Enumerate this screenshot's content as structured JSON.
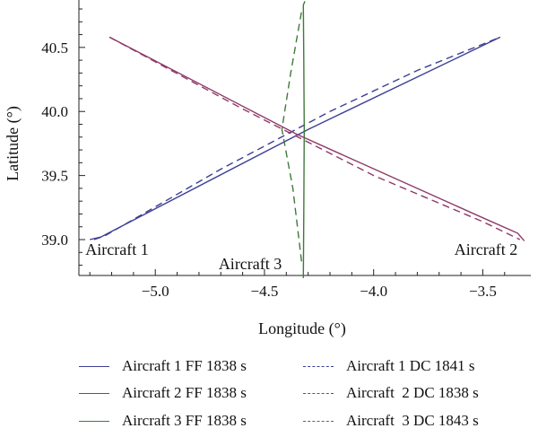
{
  "chart_data": {
    "type": "line",
    "xlabel": "Longitude (°)",
    "ylabel": "Latitude (°)",
    "xlim": [
      -5.35,
      -3.28
    ],
    "ylim": [
      38.72,
      40.87
    ],
    "xticks": [
      -5.0,
      -4.5,
      -4.0,
      -3.5
    ],
    "xtick_labels": [
      "−5.0",
      "−4.5",
      "−4.0",
      "−3.5"
    ],
    "yticks": [
      39.0,
      39.5,
      40.0,
      40.5
    ],
    "ytick_labels": [
      "39.0",
      "39.5",
      "40.0",
      "40.5"
    ],
    "legend_position": "bottom",
    "series": [
      {
        "name": "Aircraft 1 FF 1838 s",
        "color": "#3d3f94",
        "dash": "solid",
        "x": [
          -5.3,
          -5.25,
          -4.3,
          -3.42
        ],
        "y": [
          39.0,
          39.02,
          39.86,
          40.58
        ]
      },
      {
        "name": "Aircraft 1 DC 1841 s",
        "color": "#3d3f94",
        "dash": "dashed",
        "x": [
          -5.28,
          -5.23,
          -4.7,
          -4.2,
          -3.8,
          -3.42
        ],
        "y": [
          39.0,
          39.03,
          39.55,
          40.0,
          40.32,
          40.58
        ]
      },
      {
        "name": "Aircraft 2 FF 1838 s",
        "color": "#8e3a68",
        "dash": "solid",
        "x": [
          -5.21,
          -4.35,
          -3.5,
          -3.34,
          -3.31
        ],
        "y": [
          40.58,
          39.82,
          39.17,
          39.05,
          38.99
        ]
      },
      {
        "name": "Aircraft  2 DC 1838 s",
        "color": "#8e3a68",
        "dash": "dashed",
        "x": [
          -5.21,
          -4.6,
          -4.0,
          -3.5,
          -3.33
        ],
        "y": [
          40.58,
          40.02,
          39.5,
          39.14,
          39.0
        ]
      },
      {
        "name": "Aircraft 3 FF 1838 s",
        "color": "#3f7a3a",
        "dash": "solid",
        "x": [
          -4.322,
          -4.32,
          -4.318,
          -4.32,
          -4.322,
          -4.315
        ],
        "y": [
          38.7,
          39.2,
          39.86,
          40.4,
          40.83,
          40.86
        ]
      },
      {
        "name": "Aircraft  3 DC 1843 s",
        "color": "#3f7a3a",
        "dash": "dashed",
        "x": [
          -4.33,
          -4.37,
          -4.42,
          -4.38,
          -4.33
        ],
        "y": [
          38.83,
          39.4,
          39.86,
          40.3,
          40.78
        ]
      }
    ],
    "annotations": [
      {
        "text": "Aircraft 1",
        "x": -5.32,
        "y": 38.88
      },
      {
        "text": "Aircraft 3",
        "x": -4.71,
        "y": 38.77
      },
      {
        "text": "Aircraft 2",
        "x": -3.63,
        "y": 38.88
      }
    ]
  }
}
